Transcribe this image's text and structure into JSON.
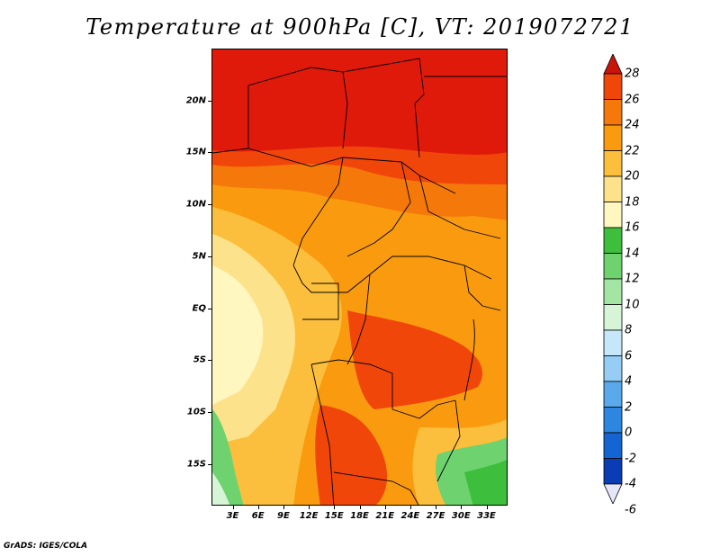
{
  "title": "Temperature at 900hPa [C], VT: 2019072721",
  "credit": "GrADS: IGES/COLA",
  "lat_labels": [
    "20N",
    "15N",
    "10N",
    "5N",
    "EQ",
    "5S",
    "10S",
    "15S"
  ],
  "lat_values": [
    20,
    15,
    10,
    5,
    0,
    -5,
    -10,
    -15
  ],
  "lon_labels": [
    "3E",
    "6E",
    "9E",
    "12E",
    "15E",
    "18E",
    "21E",
    "24E",
    "27E",
    "30E",
    "33E"
  ],
  "lon_values": [
    3,
    6,
    9,
    12,
    15,
    18,
    21,
    24,
    27,
    30,
    33
  ],
  "colorbar": {
    "labels": [
      "28",
      "26",
      "24",
      "22",
      "20",
      "18",
      "16",
      "14",
      "12",
      "10",
      "8",
      "6",
      "4",
      "2",
      "0",
      "-2",
      "-4",
      "-6"
    ],
    "colors": [
      "#e01a0a",
      "#f0460a",
      "#f5780a",
      "#fa9b0f",
      "#fcbf3d",
      "#fde28c",
      "#fff6c0",
      "#3dbe3d",
      "#6ed26e",
      "#a3e6a3",
      "#d6f5d6",
      "#c6e6fa",
      "#96cdf5",
      "#5aaaeb",
      "#2d87e1",
      "#1464d2",
      "#0a3cb4",
      "#050a78"
    ],
    "top_arrow_color": "#c8140a",
    "bottom_arrow_color": "#e6e6fa"
  },
  "legend_range": [
    -6,
    28
  ]
}
